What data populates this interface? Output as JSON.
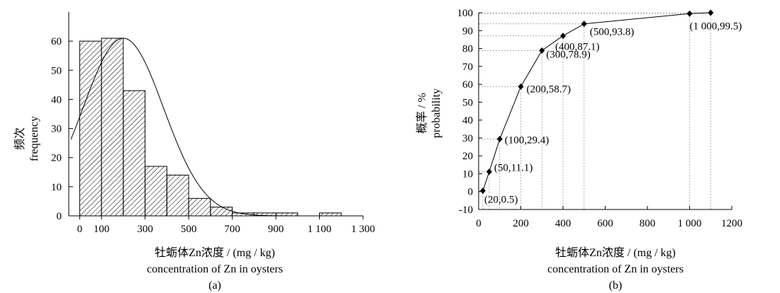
{
  "chart_data": [
    {
      "panel": "(a)",
      "type": "bar",
      "ylabel_cn": "频次",
      "ylabel_en": "frequency",
      "xlabel_cn": "牡蛎体Zn浓度 / (mg / kg)",
      "xlabel_en": "concentration of Zn in oysters",
      "bin_width": 100,
      "bins": [
        {
          "x": 0,
          "value": 60
        },
        {
          "x": 100,
          "value": 61
        },
        {
          "x": 200,
          "value": 43
        },
        {
          "x": 300,
          "value": 17
        },
        {
          "x": 400,
          "value": 14
        },
        {
          "x": 500,
          "value": 6
        },
        {
          "x": 600,
          "value": 3
        },
        {
          "x": 700,
          "value": 1
        },
        {
          "x": 800,
          "value": 1
        },
        {
          "x": 900,
          "value": 1
        },
        {
          "x": 1100,
          "value": 1
        }
      ],
      "normal_curve": {
        "mean": 200,
        "sd": 185,
        "peak": 61
      },
      "xlim": [
        -50,
        1300
      ],
      "ylim": [
        0,
        70
      ],
      "xticks": [
        {
          "v": 0,
          "label": "0"
        },
        {
          "v": 100,
          "label": "100"
        },
        {
          "v": 300,
          "label": "300"
        },
        {
          "v": 500,
          "label": "500"
        },
        {
          "v": 700,
          "label": "700"
        },
        {
          "v": 900,
          "label": "900"
        },
        {
          "v": 1100,
          "label": "1 100"
        },
        {
          "v": 1300,
          "label": "1 300"
        }
      ],
      "yticks": [
        0,
        10,
        20,
        30,
        40,
        50,
        60
      ]
    },
    {
      "panel": "(b)",
      "type": "line",
      "ylabel_cn": "概率 / %",
      "ylabel_en": "probability",
      "xlabel_cn": "牡蛎体Zn浓度 / (mg / kg)",
      "xlabel_en": "concentration of Zn in oysters",
      "points": [
        {
          "x": 20,
          "y": 0.5,
          "label": "(20,0.5)"
        },
        {
          "x": 50,
          "y": 11.1,
          "label": "(50,11.1)"
        },
        {
          "x": 100,
          "y": 29.4,
          "label": "(100,29.4)"
        },
        {
          "x": 200,
          "y": 58.7,
          "label": "(200,58.7)"
        },
        {
          "x": 300,
          "y": 78.9,
          "label": "(300,78.9)"
        },
        {
          "x": 400,
          "y": 87.1,
          "label": "(400,87.1)"
        },
        {
          "x": 500,
          "y": 93.8,
          "label": "(500,93.8)"
        },
        {
          "x": 1000,
          "y": 99.5,
          "label": "(1 000,99.5)"
        },
        {
          "x": 1100,
          "y": 100,
          "label": ""
        }
      ],
      "xlim": [
        0,
        1200
      ],
      "ylim": [
        -10,
        100
      ],
      "xticks": [
        {
          "v": 0,
          "label": "0"
        },
        {
          "v": 200,
          "label": "200"
        },
        {
          "v": 400,
          "label": "400"
        },
        {
          "v": 600,
          "label": "600"
        },
        {
          "v": 800,
          "label": "800"
        },
        {
          "v": 1000,
          "label": "1 000"
        },
        {
          "v": 1200,
          "label": "1200"
        }
      ],
      "yticks": [
        -10,
        0,
        10,
        20,
        30,
        40,
        50,
        60,
        70,
        80,
        90,
        100
      ],
      "guide_lines": "dotted"
    }
  ]
}
